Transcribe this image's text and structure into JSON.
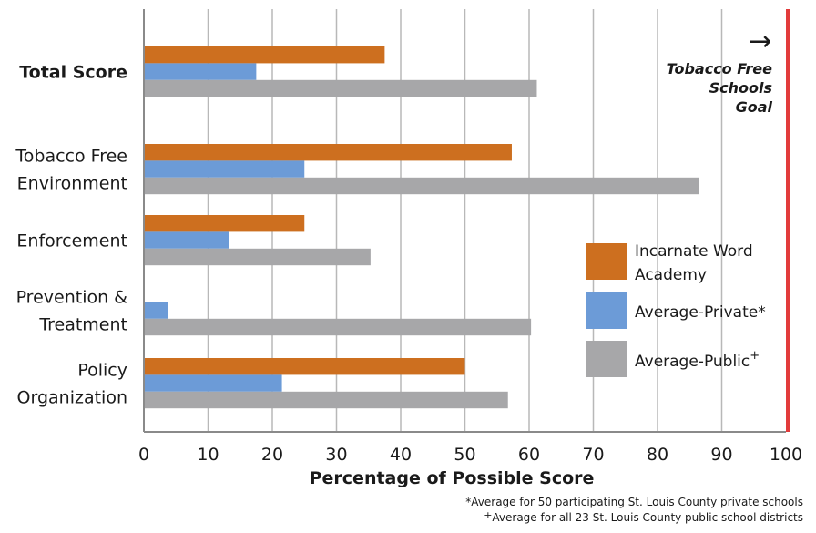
{
  "chart_data": {
    "type": "bar",
    "orientation": "horizontal",
    "categories": [
      [
        "Total Score"
      ],
      [
        "Tobacco Free",
        "Environment"
      ],
      [
        "Enforcement"
      ],
      [
        "Prevention &",
        "Treatment"
      ],
      [
        "Policy",
        "Organization"
      ]
    ],
    "category_bold": [
      true,
      false,
      false,
      false,
      false
    ],
    "series": [
      {
        "name": "Incarnate Word Academy",
        "legend_lines": [
          "Incarnate Word",
          "Academy"
        ],
        "color": "#cd6f1f",
        "values": [
          37.5,
          57.3,
          25.0,
          0,
          50.0
        ]
      },
      {
        "name": "Average-Private*",
        "legend_lines": [
          "Average-Private*"
        ],
        "color": "#6c9bd7",
        "values": [
          17.5,
          25.0,
          13.3,
          3.7,
          21.5
        ]
      },
      {
        "name": "Average-Public+",
        "legend_lines": [
          "Average-Public",
          "+"
        ],
        "color": "#a7a7a9",
        "values": [
          61.2,
          86.5,
          35.3,
          60.3,
          56.7
        ]
      }
    ],
    "x_ticks": [
      0,
      10,
      20,
      30,
      40,
      50,
      60,
      70,
      80,
      90,
      100
    ],
    "xlim": [
      0,
      100
    ],
    "xlabel": "Percentage of Possible Score",
    "grid": true,
    "legend_position": "right",
    "goal": {
      "value": 100,
      "color": "#e23b3b",
      "arrow": "→",
      "label_lines": [
        "Tobacco Free",
        "Schools",
        "Goal"
      ]
    }
  },
  "footnotes": {
    "private": "*Average for 50 participating St. Louis County private schools",
    "public_mark": "+",
    "public": "Average for all 23 St. Louis County public school districts"
  }
}
